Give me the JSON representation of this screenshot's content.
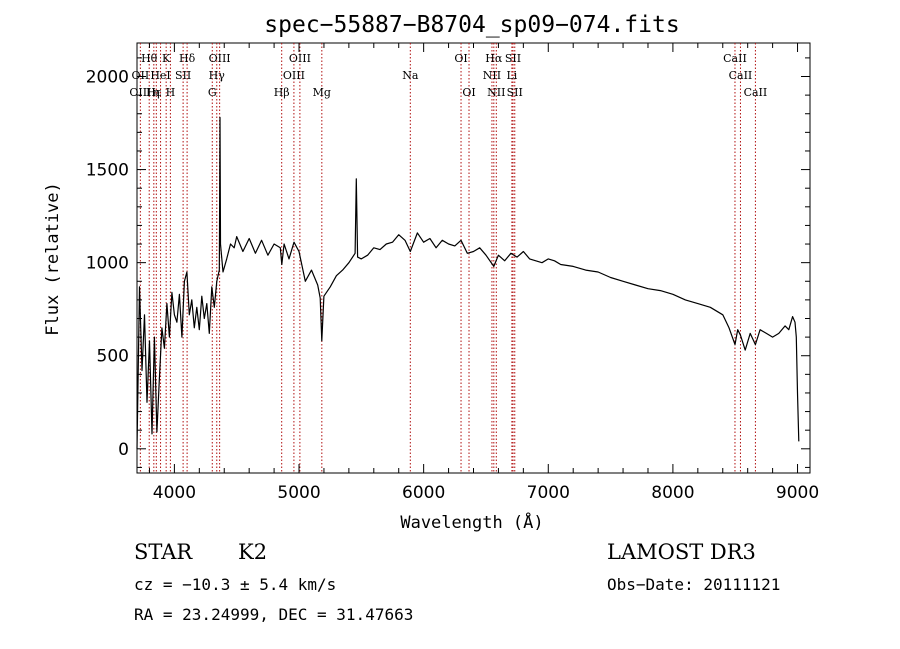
{
  "chart_data": {
    "type": "line",
    "title": "spec−55887−B8704_sp09−074.fits",
    "xlabel": "Wavelength (Å)",
    "ylabel": "Flux (relative)",
    "xlim": [
      3700,
      9100
    ],
    "ylim": [
      -130,
      2180
    ],
    "x_ticks": [
      4000,
      5000,
      6000,
      7000,
      8000,
      9000
    ],
    "y_ticks": [
      0,
      500,
      1000,
      1500,
      2000
    ],
    "x_tick_labels": [
      "4000",
      "5000",
      "6000",
      "7000",
      "8000",
      "9000"
    ],
    "y_tick_labels": [
      "0",
      "500",
      "1000",
      "1500",
      "2000"
    ],
    "series": [
      {
        "name": "flux",
        "x": [
          3700,
          3720,
          3740,
          3760,
          3780,
          3800,
          3820,
          3840,
          3860,
          3880,
          3900,
          3920,
          3940,
          3960,
          3980,
          4000,
          4020,
          4040,
          4060,
          4080,
          4100,
          4120,
          4140,
          4160,
          4180,
          4200,
          4220,
          4240,
          4260,
          4280,
          4300,
          4320,
          4340,
          4360,
          4362,
          4366,
          4370,
          4390,
          4420,
          4450,
          4480,
          4500,
          4550,
          4600,
          4650,
          4700,
          4750,
          4800,
          4850,
          4862,
          4880,
          4920,
          4960,
          5000,
          5050,
          5100,
          5150,
          5170,
          5183,
          5200,
          5250,
          5300,
          5350,
          5400,
          5450,
          5460,
          5470,
          5500,
          5550,
          5600,
          5650,
          5700,
          5750,
          5800,
          5850,
          5893,
          5950,
          6000,
          6050,
          6100,
          6150,
          6200,
          6250,
          6300,
          6350,
          6400,
          6450,
          6500,
          6563,
          6600,
          6650,
          6700,
          6750,
          6800,
          6850,
          6900,
          6950,
          7000,
          7050,
          7100,
          7200,
          7300,
          7400,
          7500,
          7600,
          7700,
          7800,
          7900,
          8000,
          8100,
          8200,
          8300,
          8400,
          8450,
          8498,
          8520,
          8542,
          8580,
          8620,
          8662,
          8700,
          8750,
          8800,
          8850,
          8900,
          8930,
          8960,
          8980,
          8990,
          9000,
          9010
        ],
        "values": [
          0,
          870,
          420,
          720,
          250,
          580,
          80,
          600,
          90,
          380,
          650,
          540,
          780,
          600,
          840,
          720,
          680,
          830,
          600,
          900,
          950,
          720,
          800,
          650,
          760,
          640,
          820,
          700,
          780,
          620,
          870,
          760,
          900,
          960,
          1150,
          1780,
          1100,
          950,
          1020,
          1100,
          1080,
          1140,
          1060,
          1130,
          1050,
          1120,
          1040,
          1100,
          1080,
          990,
          1100,
          1020,
          1110,
          1060,
          900,
          960,
          880,
          810,
          580,
          820,
          870,
          930,
          960,
          1000,
          1050,
          1450,
          1030,
          1020,
          1040,
          1080,
          1070,
          1100,
          1110,
          1150,
          1120,
          1060,
          1160,
          1110,
          1130,
          1080,
          1120,
          1100,
          1090,
          1120,
          1050,
          1060,
          1080,
          1040,
          980,
          1040,
          1010,
          1050,
          1030,
          1060,
          1020,
          1010,
          1000,
          1020,
          1010,
          990,
          980,
          960,
          950,
          920,
          900,
          880,
          860,
          850,
          830,
          800,
          780,
          760,
          720,
          650,
          560,
          640,
          610,
          530,
          620,
          560,
          640,
          620,
          600,
          620,
          660,
          640,
          710,
          680,
          600,
          300,
          40
        ]
      }
    ],
    "spectral_lines": [
      {
        "label": "Hθ",
        "x": 3798,
        "row": 0
      },
      {
        "label": "K",
        "x": 3934,
        "row": 0
      },
      {
        "label": "Hδ",
        "x": 4102,
        "row": 0
      },
      {
        "label": "OIII",
        "x": 4363,
        "row": 0
      },
      {
        "label": "OIII",
        "x": 5007,
        "row": 0
      },
      {
        "label": "OI",
        "x": 6300,
        "row": 0
      },
      {
        "label": "Hα",
        "x": 6563,
        "row": 0
      },
      {
        "label": "SII",
        "x": 6717,
        "row": 0
      },
      {
        "label": "CaII",
        "x": 8498,
        "row": 0
      },
      {
        "label": "OII",
        "x": 3727,
        "row": 1
      },
      {
        "label": "HeI",
        "x": 3889,
        "row": 1
      },
      {
        "label": "SII",
        "x": 4070,
        "row": 1
      },
      {
        "label": "Hγ",
        "x": 4340,
        "row": 1
      },
      {
        "label": "OIII",
        "x": 4959,
        "row": 1
      },
      {
        "label": "Na",
        "x": 5893,
        "row": 1
      },
      {
        "label": "NII",
        "x": 6548,
        "row": 1
      },
      {
        "label": "Li",
        "x": 6708,
        "row": 1
      },
      {
        "label": "CaII",
        "x": 8542,
        "row": 1
      },
      {
        "label": "OIII",
        "x": 3727,
        "row": 2
      },
      {
        "label": "Hε",
        "x": 3835,
        "row": 2
      },
      {
        "label": "η",
        "x": 3855,
        "row": 2
      },
      {
        "label": "H",
        "x": 3968,
        "row": 2
      },
      {
        "label": "G",
        "x": 4304,
        "row": 2
      },
      {
        "label": "Hβ",
        "x": 4861,
        "row": 2
      },
      {
        "label": "Mg",
        "x": 5183,
        "row": 2
      },
      {
        "label": "OI",
        "x": 6364,
        "row": 2
      },
      {
        "label": "NII",
        "x": 6583,
        "row": 2
      },
      {
        "label": "SII",
        "x": 6731,
        "row": 2
      },
      {
        "label": "CaII",
        "x": 8662,
        "row": 2
      }
    ],
    "line_color": "#000000",
    "marker_color": "#b01010"
  },
  "info": {
    "object_class": "STAR",
    "subclass": "K2",
    "survey": "LAMOST DR3",
    "cz": "cz = −10.3 ± 5.4 km/s",
    "obs_date": "Obs−Date: 20111121",
    "coords": "RA =  23.24999, DEC =  31.47663"
  }
}
